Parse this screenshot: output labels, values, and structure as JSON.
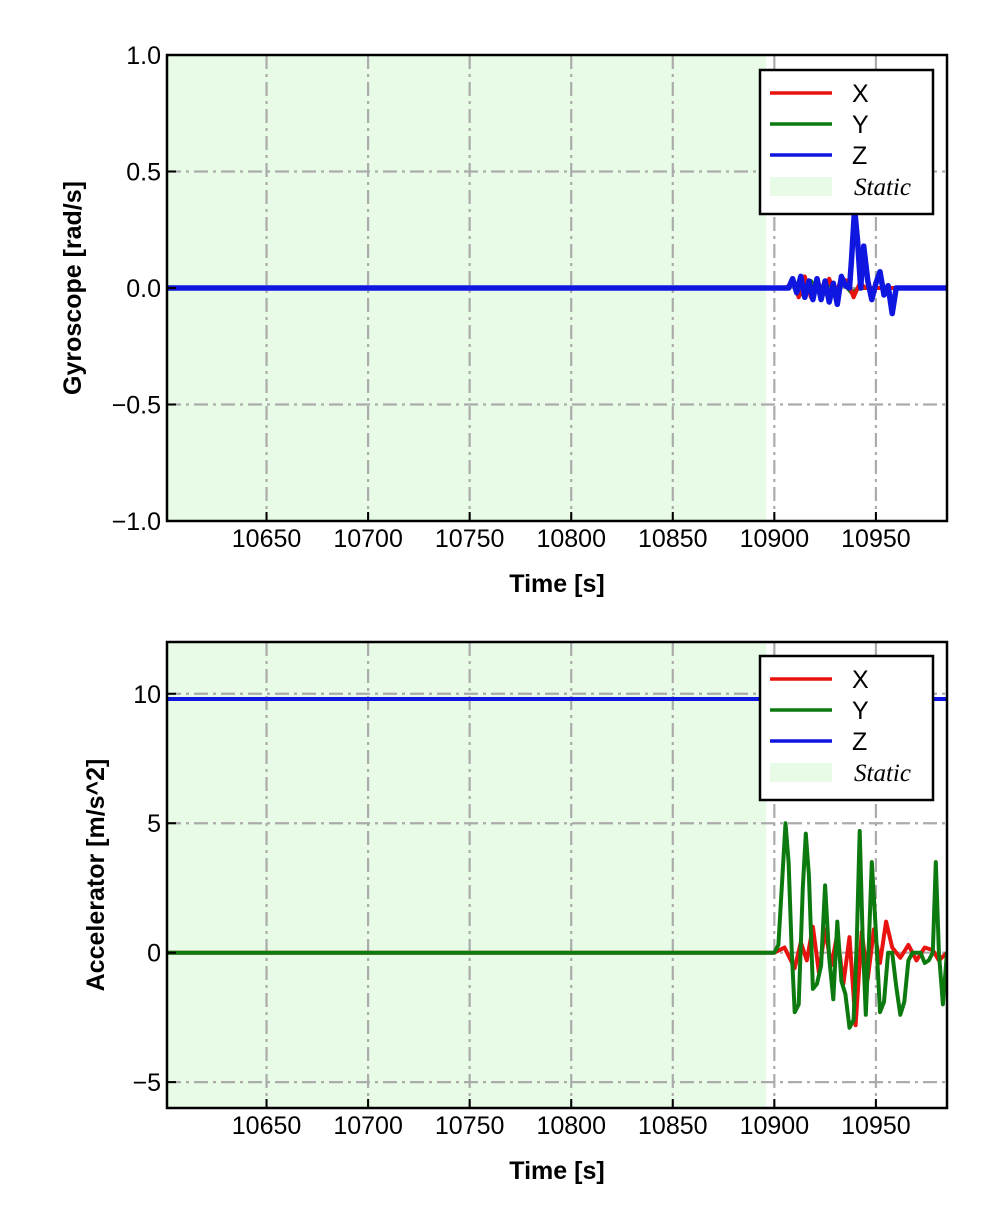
{
  "chart_data": [
    {
      "type": "line",
      "xlabel": "Time [s]",
      "ylabel": "Gyroscope [rad/s]",
      "xlim": [
        10601,
        10985
      ],
      "ylim": [
        -1.0,
        1.0
      ],
      "xticks": [
        10650,
        10700,
        10750,
        10800,
        10850,
        10900,
        10950
      ],
      "xtick_labels": [
        "10650",
        "10700",
        "10750",
        "10800",
        "10850",
        "10900",
        "10950"
      ],
      "yticks": [
        -1.0,
        -0.5,
        0.0,
        0.5,
        1.0
      ],
      "ytick_labels": [
        "−1.0",
        "−0.5",
        "0.0",
        "0.5",
        "1.0"
      ],
      "grid": true,
      "legend_position": "top-right",
      "static_region": {
        "label": "Static",
        "x": [
          10601,
          10896
        ],
        "color": "#e8fbe6"
      },
      "series": [
        {
          "name": "X",
          "color": "#e8120f",
          "x": [
            10601,
            10906,
            10909,
            10912,
            10915,
            10918,
            10921,
            10924,
            10927,
            10930,
            10933,
            10936,
            10939,
            10942,
            10945,
            10985
          ],
          "y": [
            0,
            0,
            0.03,
            -0.04,
            0.05,
            -0.04,
            0.04,
            -0.03,
            0.04,
            -0.03,
            0.04,
            0.03,
            -0.04,
            0.02,
            0,
            0
          ]
        },
        {
          "name": "Y",
          "color": "#0d7a10",
          "x": [
            10601,
            10906,
            10910,
            10914,
            10918,
            10922,
            10926,
            10930,
            10934,
            10938,
            10942,
            10985
          ],
          "y": [
            0,
            0,
            0.02,
            -0.03,
            0.03,
            -0.02,
            0.03,
            -0.02,
            0.02,
            -0.02,
            0,
            0
          ]
        },
        {
          "name": "Z",
          "color": "#0f16e0",
          "x": [
            10601,
            10907,
            10909,
            10911,
            10913,
            10915,
            10917,
            10919,
            10921,
            10923,
            10925,
            10927,
            10929,
            10931,
            10933,
            10935,
            10937,
            10938,
            10939.5,
            10941,
            10942.5,
            10944,
            10946,
            10948,
            10950,
            10952,
            10954,
            10956,
            10958,
            10960,
            10985
          ],
          "y": [
            0,
            0,
            0.04,
            -0.02,
            0.05,
            -0.04,
            0.03,
            -0.05,
            0.04,
            -0.05,
            0.03,
            -0.06,
            0.02,
            -0.07,
            0.05,
            0.01,
            0,
            0.12,
            0.34,
            0.2,
            0.0,
            0.18,
            0.03,
            -0.05,
            0.02,
            0.07,
            -0.03,
            0.01,
            -0.11,
            0,
            0
          ]
        }
      ]
    },
    {
      "type": "line",
      "xlabel": "Time [s]",
      "ylabel": "Accelerator [m/s^2]",
      "xlim": [
        10601,
        10985
      ],
      "ylim": [
        -6,
        12
      ],
      "xticks": [
        10650,
        10700,
        10750,
        10800,
        10850,
        10900,
        10950
      ],
      "xtick_labels": [
        "10650",
        "10700",
        "10750",
        "10800",
        "10850",
        "10900",
        "10950"
      ],
      "yticks": [
        -5,
        0,
        5,
        10
      ],
      "ytick_labels": [
        "−5",
        "0",
        "5",
        "10"
      ],
      "grid": true,
      "legend_position": "top-right",
      "static_region": {
        "label": "Static",
        "x": [
          10601,
          10896
        ],
        "color": "#e8fbe6"
      },
      "series": [
        {
          "name": "X",
          "color": "#e8120f",
          "x": [
            10601,
            10900,
            10905,
            10910,
            10913,
            10916,
            10919,
            10922,
            10925,
            10928,
            10931,
            10934,
            10937,
            10940,
            10943,
            10946,
            10949,
            10952,
            10955,
            10958,
            10962,
            10966,
            10970,
            10974,
            10978,
            10981,
            10985
          ],
          "y": [
            0,
            0,
            0.2,
            -0.6,
            0.4,
            -0.3,
            1.0,
            -0.8,
            0.9,
            -0.5,
            0.7,
            -1.2,
            0.6,
            -2.8,
            0.8,
            -1.0,
            0.9,
            -0.4,
            1.2,
            0.2,
            -0.2,
            0.3,
            -0.3,
            0.2,
            0.1,
            -0.3,
            0
          ]
        },
        {
          "name": "Y",
          "color": "#0d7a10",
          "x": [
            10601,
            10900,
            10902,
            10904,
            10905.5,
            10907,
            10908.5,
            10910,
            10912,
            10914,
            10915.5,
            10917,
            10919,
            10921,
            10923,
            10925,
            10927,
            10929,
            10931,
            10933,
            10935,
            10937,
            10939,
            10940.5,
            10942,
            10943.5,
            10945,
            10946.5,
            10948,
            10950,
            10952,
            10954,
            10956,
            10958,
            10960,
            10962,
            10964,
            10966,
            10968,
            10970,
            10972,
            10974,
            10976,
            10978,
            10979.5,
            10981,
            10983,
            10985
          ],
          "y": [
            0,
            0,
            0.3,
            3.0,
            5.0,
            3.5,
            0.2,
            -2.3,
            -2.0,
            2.5,
            4.6,
            3.0,
            -1.4,
            -1.2,
            -0.5,
            2.6,
            -0.2,
            -1.8,
            1.2,
            -1.1,
            -1.6,
            -2.9,
            -2.6,
            0.2,
            4.7,
            0.5,
            -2.4,
            0.3,
            3.5,
            0.8,
            -2.3,
            -1.9,
            0,
            0,
            -1.3,
            -2.4,
            -1.9,
            -0.3,
            0,
            0,
            0,
            -0.4,
            -0.3,
            0,
            3.5,
            0.0,
            -2.0,
            0
          ]
        },
        {
          "name": "Z",
          "color": "#0f16e0",
          "x": [
            10601,
            10985
          ],
          "y": [
            9.8,
            9.8
          ]
        }
      ]
    }
  ],
  "legend_static_label": "Static"
}
